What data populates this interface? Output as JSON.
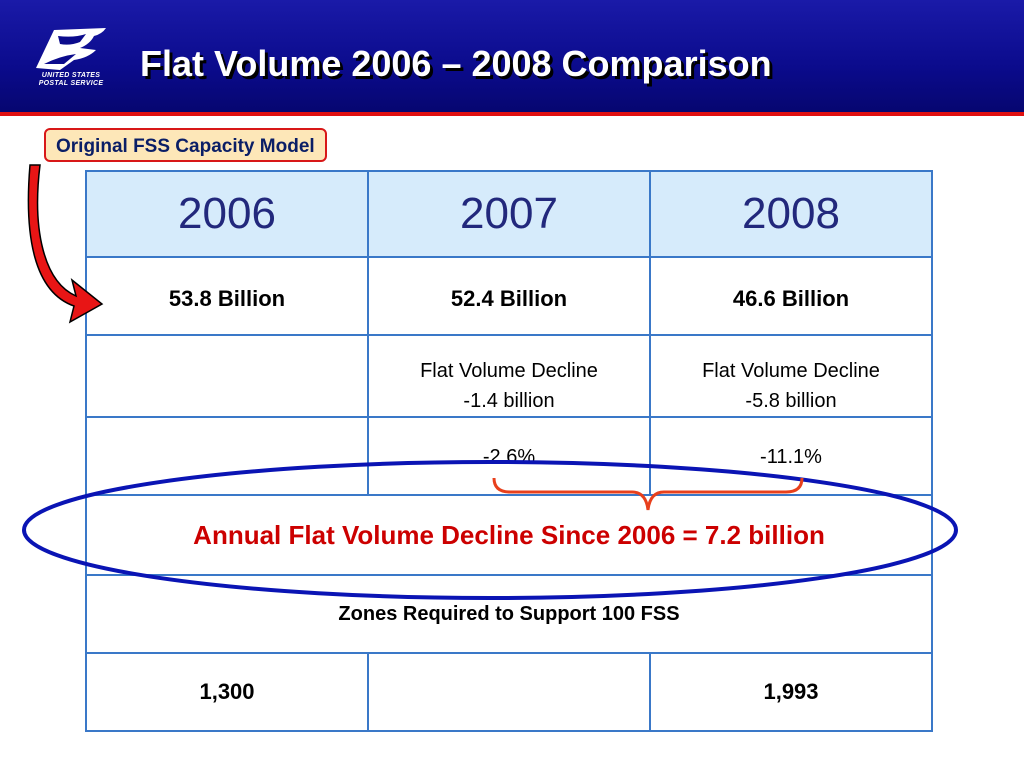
{
  "header": {
    "title": "Flat Volume 2006 – 2008 Comparison",
    "logo_lines": [
      "UNITED STATES",
      "POSTAL SERVICE"
    ],
    "logo_icon": "eagle-icon"
  },
  "tag": {
    "label": "Original FSS Capacity Model"
  },
  "table": {
    "years": [
      "2006",
      "2007",
      "2008"
    ],
    "volumes": [
      "53.8 Billion",
      "52.4 Billion",
      "46.6 Billion"
    ],
    "declines": [
      "",
      "Flat Volume Decline\n-1.4 billion",
      "Flat Volume Decline\n-5.8 billion"
    ],
    "percent_changes": [
      "",
      "-2.6%",
      "-11.1%"
    ],
    "total_decline": "Annual Flat Volume Decline Since 2006 = 7.2 billion",
    "zones_label": "Zones Required to Support 100 FSS",
    "zones_values": [
      "1,300",
      "",
      "1,993"
    ]
  },
  "colors": {
    "header_blue": "#0b0b8c",
    "accent_red": "#e01010",
    "table_border": "#3a78c8",
    "header_cell": "#d6ebfb",
    "year_text": "#22287c",
    "ellipse": "#0a14b4",
    "brace": "#e8401c"
  }
}
